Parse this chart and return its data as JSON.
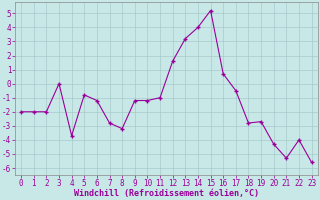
{
  "x": [
    0,
    1,
    2,
    3,
    4,
    5,
    6,
    7,
    8,
    9,
    10,
    11,
    12,
    13,
    14,
    15,
    16,
    17,
    18,
    19,
    20,
    21,
    22,
    23
  ],
  "y": [
    -2,
    -2,
    -2,
    0,
    -3.7,
    -0.8,
    -1.2,
    -2.8,
    -3.2,
    -1.2,
    -1.2,
    -1.0,
    1.6,
    3.2,
    4.0,
    5.2,
    0.7,
    -0.5,
    -2.8,
    -2.7,
    -4.3,
    -5.3,
    -4.0,
    -5.6
  ],
  "line_color": "#990099",
  "marker": "+",
  "bg_color": "#c8e8e8",
  "grid_color": "#a0c4c4",
  "xlabel": "Windchill (Refroidissement éolien,°C)",
  "xlabel_color": "#990099",
  "tick_color": "#990099",
  "spine_color": "#888888",
  "ylim": [
    -6.5,
    5.8
  ],
  "yticks": [
    -6,
    -5,
    -4,
    -3,
    -2,
    -1,
    0,
    1,
    2,
    3,
    4,
    5
  ],
  "xticks": [
    0,
    1,
    2,
    3,
    4,
    5,
    6,
    7,
    8,
    9,
    10,
    11,
    12,
    13,
    14,
    15,
    16,
    17,
    18,
    19,
    20,
    21,
    22,
    23
  ],
  "figsize": [
    3.2,
    2.0
  ],
  "dpi": 100,
  "linewidth": 0.8,
  "markersize": 3.5,
  "tick_fontsize": 5.5,
  "xlabel_fontsize": 6.0
}
